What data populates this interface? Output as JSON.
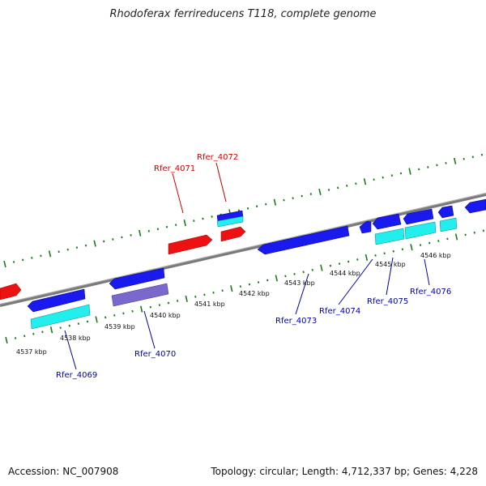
{
  "title": "Rhodoferax ferrireducens T118, complete genome",
  "footer": {
    "accession": "Accession: NC_007908",
    "summary": "Topology: circular; Length: 4,712,337 bp; Genes: 4,228"
  },
  "scale_labels": [
    "4537 kbp",
    "4538 kbp",
    "4539 kbp",
    "4540 kbp",
    "4541 kbp",
    "4542 kbp",
    "4543 kbp",
    "4544 kbp",
    "4545 kbp",
    "4546 kbp"
  ],
  "gene_labels": {
    "rfer_4069": "Rfer_4069",
    "rfer_4070": "Rfer_4070",
    "rfer_4071": "Rfer_4071",
    "rfer_4072": "Rfer_4072",
    "rfer_4073": "Rfer_4073",
    "rfer_4074": "Rfer_4074",
    "rfer_4075": "Rfer_4075",
    "rfer_4076": "Rfer_4076"
  },
  "colors": {
    "forward_gene": "#ee1111",
    "reverse_gene": "#1a1aee",
    "rna": "#22eeee",
    "pseudo": "#7b68cc",
    "backbone": "#888888",
    "ticks": "#1a7a1a",
    "label_red": "#d00000",
    "label_blue": "#0000b0"
  }
}
